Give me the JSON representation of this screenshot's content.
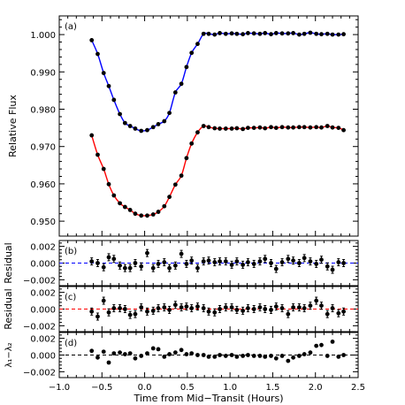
{
  "chart_data": {
    "type": "scatter",
    "xlabel": "Time from Mid−Transit (Hours)",
    "xlim": [
      -1.0,
      2.5
    ],
    "x_ticks": [
      -1.0,
      -0.5,
      0.0,
      0.5,
      1.0,
      1.5,
      2.0,
      2.5
    ],
    "x_tick_labels": [
      "−1.0",
      "−0.5",
      "0.0",
      "0.5",
      "1.0",
      "1.5",
      "2.0",
      "2.5"
    ],
    "panels": [
      {
        "label": "(a)",
        "ylabel": "Relative Flux",
        "ylim": [
          0.946,
          1.005
        ],
        "y_ticks": [
          0.95,
          0.96,
          0.97,
          0.98,
          0.99,
          1.0
        ],
        "y_tick_labels": [
          "0.950",
          "0.960",
          "0.970",
          "0.980",
          "0.990",
          "1.000"
        ],
        "series": [
          {
            "color": "#0000ff",
            "x": [
              -0.62,
              -0.55,
              -0.48,
              -0.42,
              -0.36,
              -0.29,
              -0.23,
              -0.17,
              -0.11,
              -0.04,
              0.03,
              0.1,
              0.16,
              0.23,
              0.29,
              0.36,
              0.43,
              0.49,
              0.55,
              0.62,
              0.69,
              0.75,
              0.82,
              0.88,
              0.95,
              1.02,
              1.08,
              1.15,
              1.21,
              1.28,
              1.35,
              1.41,
              1.48,
              1.54,
              1.61,
              1.68,
              1.74,
              1.81,
              1.87,
              1.94,
              2.01,
              2.07,
              2.14,
              2.2,
              2.27,
              2.33
            ],
            "y": [
              0.9985,
              0.9948,
              0.9897,
              0.9862,
              0.9825,
              0.9787,
              0.9763,
              0.9755,
              0.9748,
              0.9742,
              0.9744,
              0.9752,
              0.976,
              0.9768,
              0.979,
              0.9845,
              0.9868,
              0.9913,
              0.9951,
              0.9975,
              1.0002,
              1.0002,
              1.0,
              1.0004,
              1.0002,
              1.0003,
              1.0002,
              1.0001,
              1.0004,
              1.0003,
              1.0002,
              1.0004,
              1.0001,
              1.0004,
              1.0003,
              1.0003,
              1.0004,
              1.0,
              1.0002,
              1.0005,
              1.0002,
              1.0001,
              1.0002,
              1.0,
              1.0,
              1.0001
            ]
          },
          {
            "color": "#ff0000",
            "x": [
              -0.62,
              -0.55,
              -0.48,
              -0.42,
              -0.36,
              -0.29,
              -0.23,
              -0.17,
              -0.11,
              -0.04,
              0.03,
              0.1,
              0.16,
              0.23,
              0.29,
              0.36,
              0.43,
              0.49,
              0.55,
              0.62,
              0.69,
              0.75,
              0.82,
              0.88,
              0.95,
              1.02,
              1.08,
              1.15,
              1.21,
              1.28,
              1.35,
              1.41,
              1.48,
              1.54,
              1.61,
              1.68,
              1.74,
              1.81,
              1.87,
              1.94,
              2.01,
              2.07,
              2.14,
              2.2,
              2.27,
              2.33
            ],
            "y": [
              0.973,
              0.9678,
              0.964,
              0.9599,
              0.9569,
              0.9548,
              0.9538,
              0.953,
              0.952,
              0.9515,
              0.9515,
              0.9518,
              0.9525,
              0.954,
              0.9565,
              0.9598,
              0.9622,
              0.9669,
              0.9708,
              0.9738,
              0.9755,
              0.9752,
              0.9749,
              0.9748,
              0.9748,
              0.9748,
              0.9749,
              0.9747,
              0.975,
              0.975,
              0.9751,
              0.9749,
              0.9752,
              0.975,
              0.9752,
              0.9751,
              0.9751,
              0.9752,
              0.9752,
              0.9751,
              0.9752,
              0.9751,
              0.9755,
              0.9751,
              0.975,
              0.9744
            ]
          }
        ]
      },
      {
        "label": "(b)",
        "ylabel": "Residual",
        "ylim": [
          -0.0027,
          0.0027
        ],
        "y_ticks": [
          -0.002,
          0.0,
          0.002
        ],
        "y_tick_labels": [
          "−0.002",
          "0.000",
          "0.002"
        ],
        "reference_line": {
          "y": 0.0,
          "color": "#0000ff",
          "dashed": true
        },
        "series": [
          {
            "color": "#000000",
            "x": [
              -0.62,
              -0.55,
              -0.48,
              -0.42,
              -0.36,
              -0.29,
              -0.23,
              -0.17,
              -0.11,
              -0.04,
              0.03,
              0.1,
              0.16,
              0.23,
              0.29,
              0.36,
              0.43,
              0.49,
              0.55,
              0.62,
              0.69,
              0.75,
              0.82,
              0.88,
              0.95,
              1.02,
              1.08,
              1.15,
              1.21,
              1.28,
              1.35,
              1.41,
              1.48,
              1.54,
              1.61,
              1.68,
              1.74,
              1.81,
              1.87,
              1.94,
              2.01,
              2.07,
              2.14,
              2.2,
              2.27,
              2.33
            ],
            "y": [
              0.0002,
              0.0,
              -0.0005,
              0.0007,
              0.0005,
              -0.0003,
              -0.0006,
              -0.0006,
              0.0,
              -0.0004,
              0.0012,
              -0.0006,
              -0.0001,
              0.0001,
              -0.0006,
              -0.0003,
              0.0011,
              -0.0001,
              0.0003,
              -0.0006,
              0.0002,
              0.0003,
              0.0001,
              0.0002,
              0.0002,
              -0.0002,
              0.0002,
              -0.0002,
              0.0001,
              -0.0001,
              0.0002,
              0.0005,
              0.0,
              -0.0007,
              0.0001,
              0.0005,
              0.0003,
              0.0,
              0.0006,
              0.0002,
              -0.0001,
              0.0004,
              -0.0004,
              -0.0008,
              0.0001,
              0.0
            ]
          }
        ]
      },
      {
        "label": "(c)",
        "ylabel": "Residual",
        "ylim": [
          -0.0027,
          0.0027
        ],
        "y_ticks": [
          -0.002,
          0.0,
          0.002
        ],
        "y_tick_labels": [
          "−0.002",
          "0.000",
          "0.002"
        ],
        "reference_line": {
          "y": 0.0,
          "color": "#ff0000",
          "dashed": true
        },
        "series": [
          {
            "color": "#000000",
            "x": [
              -0.62,
              -0.55,
              -0.48,
              -0.42,
              -0.36,
              -0.29,
              -0.23,
              -0.17,
              -0.11,
              -0.04,
              0.03,
              0.1,
              0.16,
              0.23,
              0.29,
              0.36,
              0.43,
              0.49,
              0.55,
              0.62,
              0.69,
              0.75,
              0.82,
              0.88,
              0.95,
              1.02,
              1.08,
              1.15,
              1.21,
              1.28,
              1.35,
              1.41,
              1.48,
              1.54,
              1.61,
              1.68,
              1.74,
              1.81,
              1.87,
              1.94,
              2.01,
              2.07,
              2.14,
              2.2,
              2.27,
              2.33
            ],
            "y": [
              -0.0003,
              -0.0009,
              0.001,
              -0.0004,
              0.0001,
              0.0001,
              0.0,
              -0.0007,
              -0.0006,
              0.0002,
              -0.0003,
              -0.0002,
              0.0001,
              0.0002,
              -0.0001,
              0.0005,
              0.0002,
              0.0003,
              0.0001,
              0.0003,
              0.0001,
              -0.0003,
              -0.0004,
              0.0,
              0.0002,
              0.0002,
              -0.0001,
              -0.0002,
              0.0001,
              0.0,
              0.0002,
              0.0,
              -0.0001,
              0.0003,
              0.0001,
              -0.0006,
              0.0002,
              0.0002,
              0.0001,
              0.0004,
              0.001,
              0.0004,
              -0.0006,
              0.0001,
              -0.0005,
              -0.0003
            ]
          }
        ]
      },
      {
        "label": "(d)",
        "ylabel": "λ₁−λ₂",
        "ylim": [
          -0.0027,
          0.0027
        ],
        "y_ticks": [
          -0.002,
          0.0,
          0.002
        ],
        "y_tick_labels": [
          "−0.002",
          "0.000",
          "0.002"
        ],
        "reference_line": {
          "y": 0.0,
          "color": "#000000",
          "dashed": true
        },
        "series": [
          {
            "color": "#000000",
            "x": [
              -0.62,
              -0.55,
              -0.48,
              -0.42,
              -0.36,
              -0.29,
              -0.23,
              -0.17,
              -0.11,
              -0.04,
              0.03,
              0.1,
              0.16,
              0.23,
              0.29,
              0.36,
              0.43,
              0.49,
              0.55,
              0.62,
              0.69,
              0.75,
              0.82,
              0.88,
              0.95,
              1.02,
              1.08,
              1.15,
              1.21,
              1.28,
              1.35,
              1.41,
              1.48,
              1.54,
              1.61,
              1.68,
              1.74,
              1.81,
              1.87,
              1.94,
              2.01,
              2.07,
              2.14,
              2.2,
              2.27,
              2.33
            ],
            "y": [
              0.0005,
              -0.0003,
              0.0004,
              -0.0009,
              0.0002,
              0.0003,
              0.0001,
              0.0002,
              -0.0004,
              -0.0001,
              0.0002,
              0.0008,
              0.0007,
              -0.0002,
              0.0001,
              0.0003,
              0.0006,
              0.0001,
              0.0002,
              0.0,
              0.0,
              -0.0002,
              -0.0002,
              0.0,
              -0.0001,
              0.0,
              -0.0002,
              -0.0001,
              0.0,
              -0.0001,
              -0.0001,
              -0.0002,
              -0.0001,
              -0.0004,
              -0.0001,
              -0.0007,
              -0.0003,
              -0.0001,
              0.0001,
              0.0003,
              0.0011,
              0.0012,
              -0.0001,
              0.0016,
              -0.0002,
              0.0
            ]
          }
        ]
      }
    ]
  }
}
